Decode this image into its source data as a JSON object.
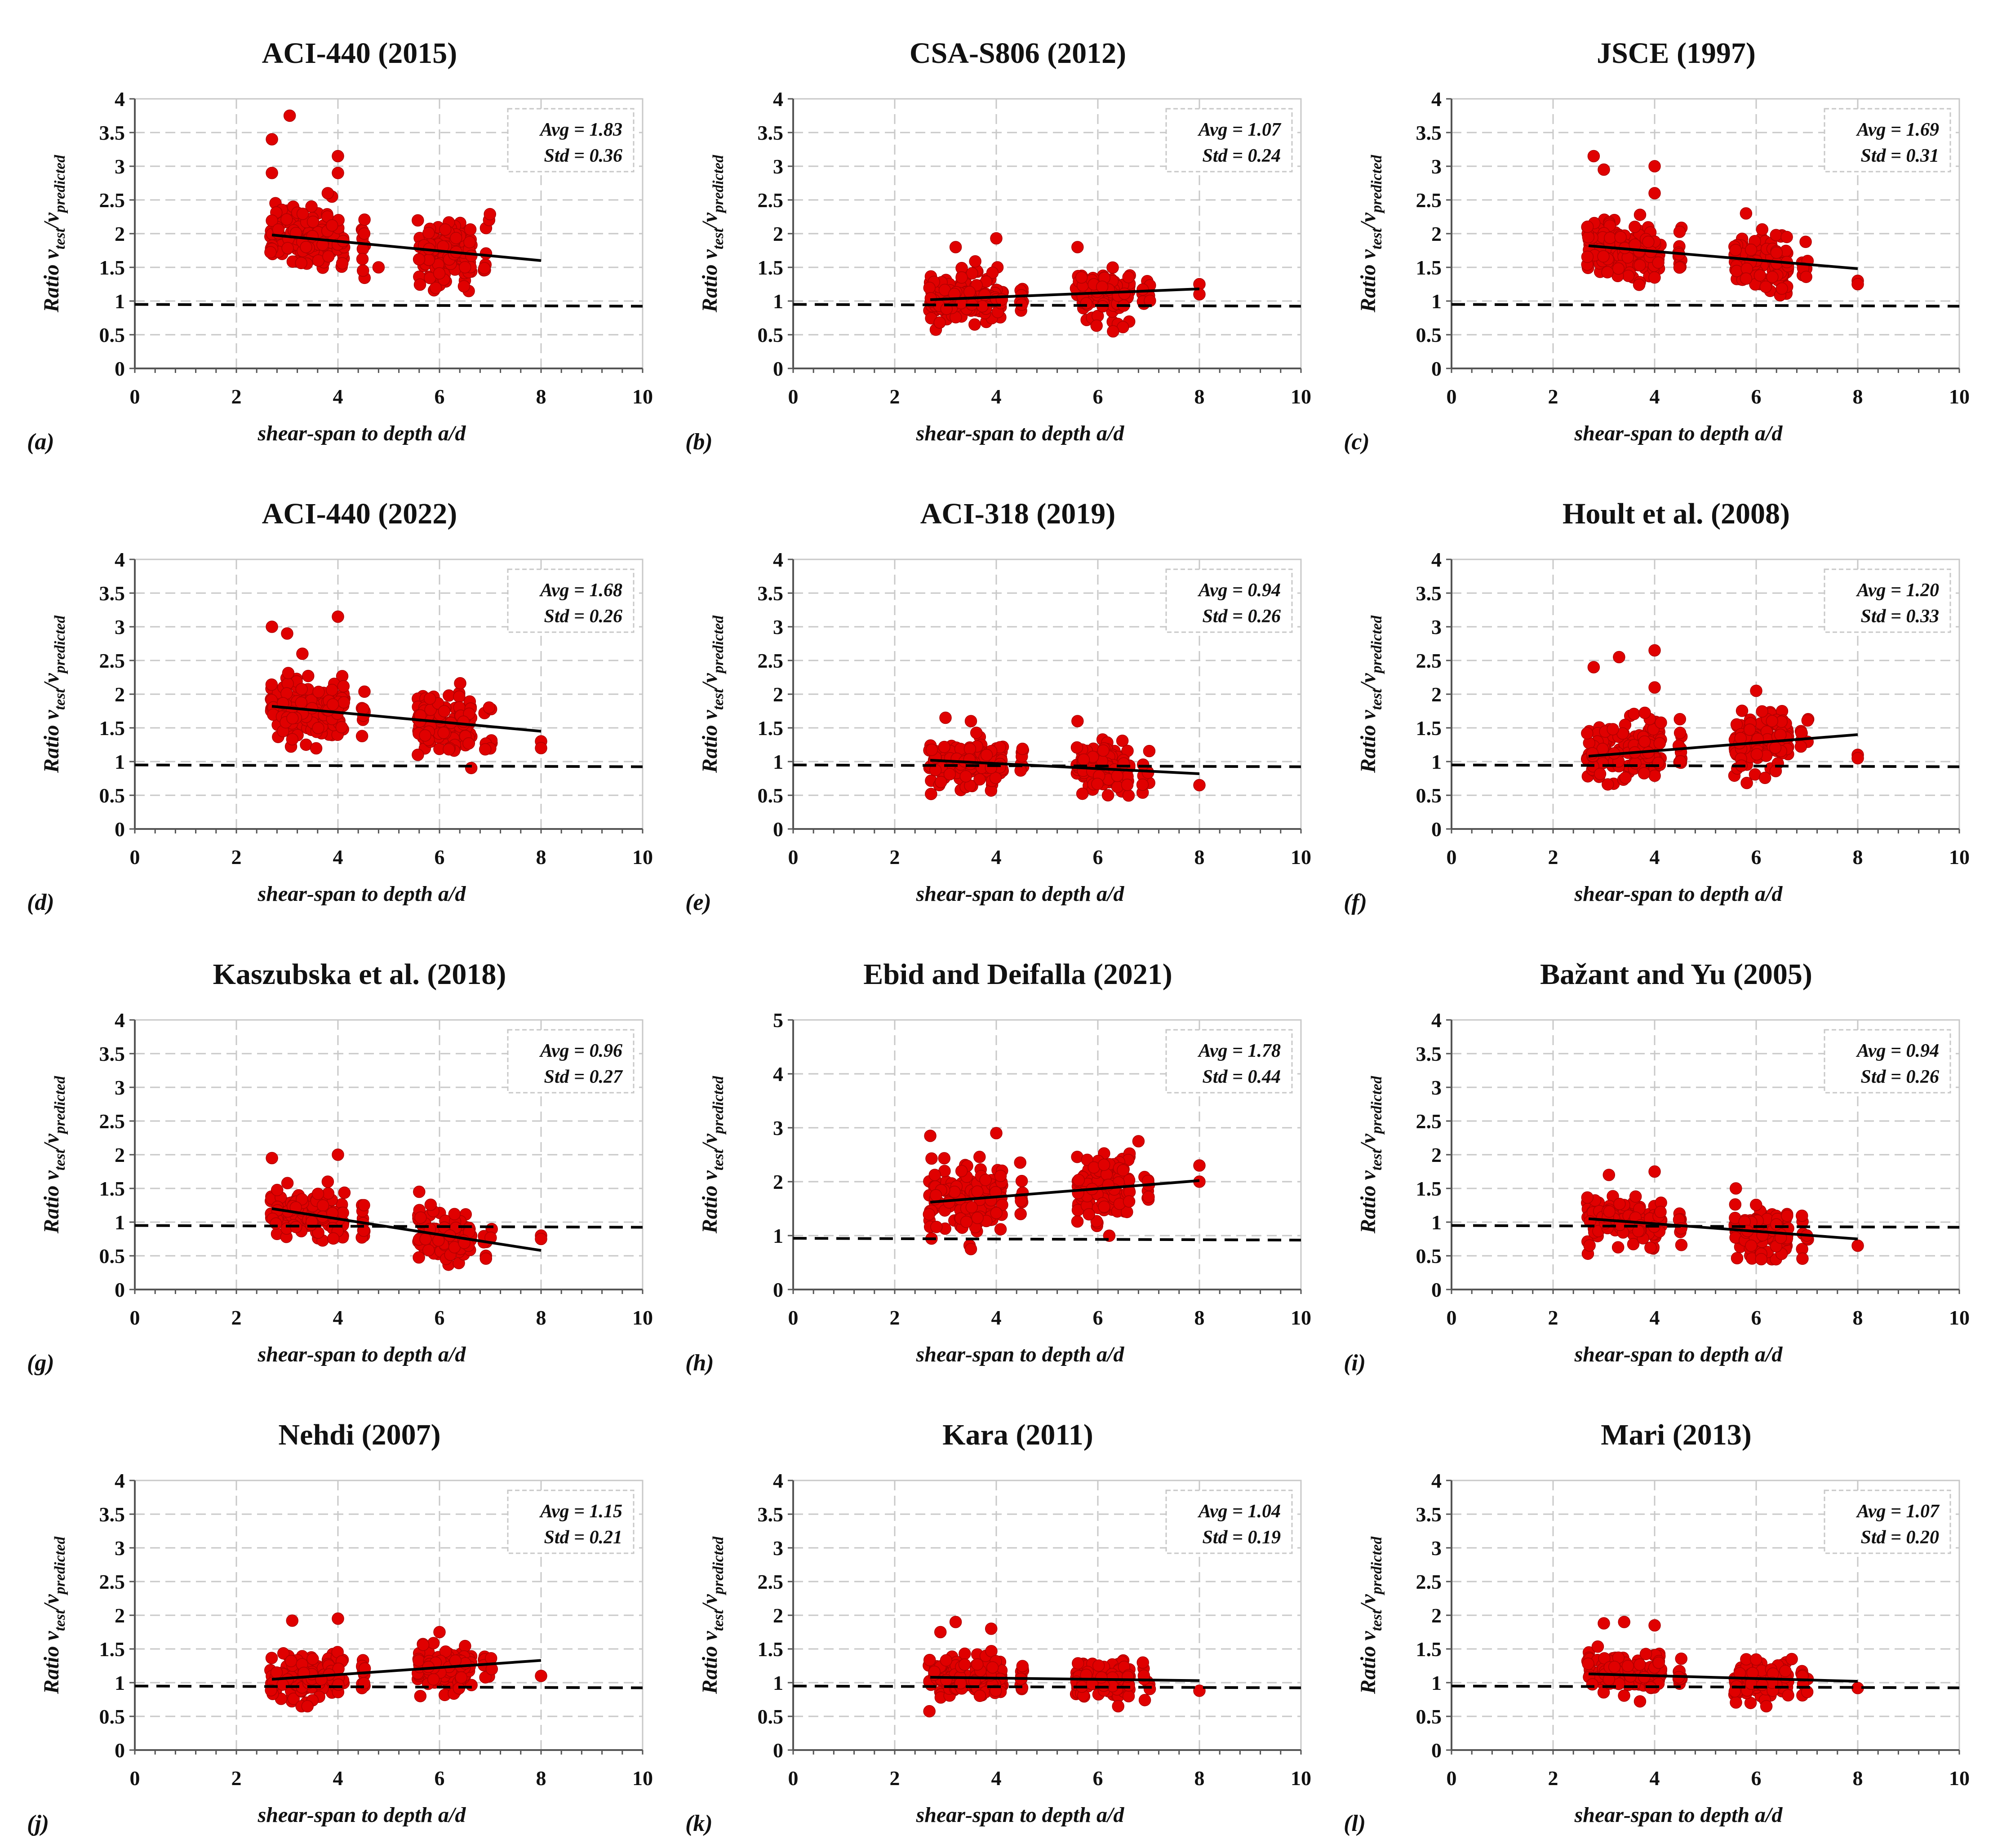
{
  "figure": {
    "colors": {
      "point": "#e00000",
      "point_edge": "#b00000",
      "grid": "#c8c8c8",
      "axis": "#555555",
      "trend": "#000000",
      "reference": "#000000"
    }
  },
  "chart_data": [
    {
      "type": "scatter",
      "letter": "(a)",
      "title": "ACI-440 (2015)",
      "xlabel": "shear-span to depth a/d",
      "ylabel_main": "Ratio v",
      "ylabel_sub1": "test",
      "ylabel_mid": "/v",
      "ylabel_sub2": "predicted",
      "xlim": [
        0,
        10
      ],
      "ylim": [
        0,
        4
      ],
      "xticks": [
        "0",
        "2",
        "4",
        "6",
        "8",
        "10"
      ],
      "yticks": [
        "0",
        "0.5",
        "1",
        "1.5",
        "2",
        "2.5",
        "3",
        "3.5",
        "4"
      ],
      "avg_label": "Avg = 1.83",
      "std_label": "Std = 0.36",
      "trend": {
        "x": [
          2.7,
          8
        ],
        "y": [
          1.98,
          1.6
        ]
      },
      "reference_y": 0.95,
      "seed": 11,
      "cloud": {
        "center": 1.88,
        "spread": 0.3
      },
      "outliers": [
        [
          2.7,
          3.4
        ],
        [
          3.05,
          3.75
        ],
        [
          4.0,
          3.15
        ],
        [
          4.0,
          2.9
        ],
        [
          2.7,
          2.9
        ],
        [
          3.8,
          2.6
        ],
        [
          4.8,
          1.5
        ]
      ]
    },
    {
      "type": "scatter",
      "letter": "(b)",
      "title": "CSA-S806 (2012)",
      "xlabel": "shear-span to depth a/d",
      "ylabel_main": "Ratio v",
      "ylabel_sub1": "test",
      "ylabel_mid": "/v",
      "ylabel_sub2": "predicted",
      "xlim": [
        0,
        10
      ],
      "ylim": [
        0,
        4
      ],
      "xticks": [
        "0",
        "2",
        "4",
        "6",
        "8",
        "10"
      ],
      "yticks": [
        "0",
        "0.5",
        "1",
        "1.5",
        "2",
        "2.5",
        "3",
        "3.5",
        "4"
      ],
      "avg_label": "Avg = 1.07",
      "std_label": "Std = 0.24",
      "trend": {
        "x": [
          2.7,
          8
        ],
        "y": [
          1.02,
          1.18
        ]
      },
      "reference_y": 0.95,
      "seed": 23,
      "cloud": {
        "center": 1.07,
        "spread": 0.22
      },
      "outliers": [
        [
          4.0,
          1.93
        ],
        [
          5.6,
          1.8
        ],
        [
          3.2,
          1.8
        ],
        [
          6.3,
          0.55
        ],
        [
          8,
          1.25
        ],
        [
          8,
          1.1
        ]
      ]
    },
    {
      "type": "scatter",
      "letter": "(c)",
      "title": "JSCE (1997)",
      "xlabel": "shear-span to depth a/d",
      "ylabel_main": "Ratio v",
      "ylabel_sub1": "test",
      "ylabel_mid": "/v",
      "ylabel_sub2": "predicted",
      "xlim": [
        0,
        10
      ],
      "ylim": [
        0,
        4
      ],
      "xticks": [
        "0",
        "2",
        "4",
        "6",
        "8",
        "10"
      ],
      "yticks": [
        "0",
        "0.5",
        "1",
        "1.5",
        "2",
        "2.5",
        "3",
        "3.5",
        "4"
      ],
      "avg_label": "Avg = 1.69",
      "std_label": "Std = 0.31",
      "trend": {
        "x": [
          2.7,
          8
        ],
        "y": [
          1.82,
          1.48
        ]
      },
      "reference_y": 0.95,
      "seed": 37,
      "cloud": {
        "center": 1.72,
        "spread": 0.27
      },
      "outliers": [
        [
          2.8,
          3.15
        ],
        [
          4.0,
          3.0
        ],
        [
          3.0,
          2.95
        ],
        [
          4.0,
          2.6
        ],
        [
          5.8,
          2.3
        ],
        [
          8,
          1.3
        ],
        [
          8,
          1.25
        ]
      ]
    },
    {
      "type": "scatter",
      "letter": "(d)",
      "title": "ACI-440 (2022)",
      "xlabel": "shear-span to depth a/d",
      "ylabel_main": "Ratio v",
      "ylabel_sub1": "test",
      "ylabel_mid": "/v",
      "ylabel_sub2": "predicted",
      "xlim": [
        0,
        10
      ],
      "ylim": [
        0,
        4
      ],
      "xticks": [
        "0",
        "2",
        "4",
        "6",
        "8",
        "10"
      ],
      "yticks": [
        "0",
        "0.5",
        "1",
        "1.5",
        "2",
        "2.5",
        "3",
        "3.5",
        "4"
      ],
      "avg_label": "Avg = 1.68",
      "std_label": "Std = 0.26",
      "trend": {
        "x": [
          2.7,
          8
        ],
        "y": [
          1.82,
          1.45
        ]
      },
      "reference_y": 0.95,
      "seed": 41,
      "cloud": {
        "center": 1.7,
        "spread": 0.28
      },
      "outliers": [
        [
          2.7,
          3.0
        ],
        [
          3.0,
          2.9
        ],
        [
          4.0,
          3.15
        ],
        [
          3.3,
          2.6
        ],
        [
          8,
          1.3
        ],
        [
          8,
          1.2
        ]
      ]
    },
    {
      "type": "scatter",
      "letter": "(e)",
      "title": "ACI-318 (2019)",
      "xlabel": "shear-span to depth a/d",
      "ylabel_main": "Ratio v",
      "ylabel_sub1": "test",
      "ylabel_mid": "/v",
      "ylabel_sub2": "predicted",
      "xlim": [
        0,
        10
      ],
      "ylim": [
        0,
        4
      ],
      "xticks": [
        "0",
        "2",
        "4",
        "6",
        "8",
        "10"
      ],
      "yticks": [
        "0",
        "0.5",
        "1",
        "1.5",
        "2",
        "2.5",
        "3",
        "3.5",
        "4"
      ],
      "avg_label": "Avg = 0.94",
      "std_label": "Std = 0.26",
      "trend": {
        "x": [
          2.7,
          8
        ],
        "y": [
          1.02,
          0.82
        ]
      },
      "reference_y": 0.95,
      "seed": 53,
      "cloud": {
        "center": 0.96,
        "spread": 0.22
      },
      "outliers": [
        [
          3.0,
          1.65
        ],
        [
          3.5,
          1.6
        ],
        [
          5.6,
          1.6
        ],
        [
          8,
          0.65
        ],
        [
          6.2,
          0.5
        ]
      ]
    },
    {
      "type": "scatter",
      "letter": "(f)",
      "title": "Hoult et al. (2008)",
      "xlabel": "shear-span to depth a/d",
      "ylabel_main": "Ratio v",
      "ylabel_sub1": "test",
      "ylabel_mid": "/v",
      "ylabel_sub2": "predicted",
      "xlim": [
        0,
        10
      ],
      "ylim": [
        0,
        4
      ],
      "xticks": [
        "0",
        "2",
        "4",
        "6",
        "8",
        "10"
      ],
      "yticks": [
        "0",
        "0.5",
        "1",
        "1.5",
        "2",
        "2.5",
        "3",
        "3.5",
        "4"
      ],
      "avg_label": "Avg = 1.20",
      "std_label": "Std = 0.33",
      "trend": {
        "x": [
          2.7,
          8
        ],
        "y": [
          1.08,
          1.4
        ]
      },
      "reference_y": 0.95,
      "seed": 67,
      "cloud": {
        "center": 1.22,
        "spread": 0.27
      },
      "outliers": [
        [
          4.0,
          2.65
        ],
        [
          3.3,
          2.55
        ],
        [
          2.8,
          2.4
        ],
        [
          4.0,
          2.1
        ],
        [
          6.0,
          2.05
        ],
        [
          8,
          1.1
        ],
        [
          8,
          1.05
        ]
      ]
    },
    {
      "type": "scatter",
      "letter": "(g)",
      "title": "Kaszubska  et al. (2018)",
      "xlabel": "shear-span to depth a/d",
      "ylabel_main": "Ratio v",
      "ylabel_sub1": "test",
      "ylabel_mid": "/v",
      "ylabel_sub2": "predicted",
      "xlim": [
        0,
        10
      ],
      "ylim": [
        0,
        4
      ],
      "xticks": [
        "0",
        "2",
        "4",
        "6",
        "8",
        "10"
      ],
      "yticks": [
        "0",
        "0.5",
        "1",
        "1.5",
        "2",
        "2.5",
        "3",
        "3.5",
        "4"
      ],
      "avg_label": "Avg = 0.96",
      "std_label": "Std = 0.27",
      "trend": {
        "x": [
          2.7,
          8
        ],
        "y": [
          1.2,
          0.58
        ]
      },
      "reference_y": 0.95,
      "seed": 71,
      "cloud": {
        "center": 0.95,
        "spread": 0.22
      },
      "outliers": [
        [
          2.7,
          1.95
        ],
        [
          4.0,
          2.0
        ],
        [
          3.8,
          1.6
        ],
        [
          5.6,
          1.45
        ],
        [
          8,
          0.8
        ],
        [
          8,
          0.75
        ]
      ]
    },
    {
      "type": "scatter",
      "letter": "(h)",
      "title": "Ebid and Deifalla (2021)",
      "xlabel": "shear-span to depth a/d",
      "ylabel_main": "Ratio v",
      "ylabel_sub1": "test",
      "ylabel_mid": "/v",
      "ylabel_sub2": "predicted",
      "xlim": [
        0,
        10
      ],
      "ylim": [
        0,
        5
      ],
      "xticks": [
        "0",
        "2",
        "4",
        "6",
        "8",
        "10"
      ],
      "yticks": [
        "0",
        "1",
        "2",
        "3",
        "4",
        "5"
      ],
      "avg_label": "Avg = 1.78",
      "std_label": "Std = 0.44",
      "trend": {
        "x": [
          2.7,
          8
        ],
        "y": [
          1.62,
          2.02
        ]
      },
      "reference_y": 0.95,
      "seed": 83,
      "cloud": {
        "center": 1.8,
        "spread": 0.4
      },
      "outliers": [
        [
          2.7,
          2.85
        ],
        [
          4.0,
          2.9
        ],
        [
          6.8,
          2.75
        ],
        [
          8,
          2.3
        ],
        [
          8,
          2.0
        ],
        [
          3.5,
          0.75
        ]
      ]
    },
    {
      "type": "scatter",
      "letter": "(i)",
      "title": "Bažant and Yu (2005)",
      "xlabel": "shear-span to depth a/d",
      "ylabel_main": "Ratio v",
      "ylabel_sub1": "test",
      "ylabel_mid": "/v",
      "ylabel_sub2": "predicted",
      "xlim": [
        0,
        10
      ],
      "ylim": [
        0,
        4
      ],
      "xticks": [
        "0",
        "2",
        "4",
        "6",
        "8",
        "10"
      ],
      "yticks": [
        "0",
        "0.5",
        "1",
        "1.5",
        "2",
        "2.5",
        "3",
        "3.5",
        "4"
      ],
      "avg_label": "Avg = 0.94",
      "std_label": "Std = 0.26",
      "trend": {
        "x": [
          2.7,
          8
        ],
        "y": [
          1.05,
          0.75
        ]
      },
      "reference_y": 0.95,
      "seed": 97,
      "cloud": {
        "center": 0.95,
        "spread": 0.22
      },
      "outliers": [
        [
          4.0,
          1.75
        ],
        [
          3.1,
          1.7
        ],
        [
          5.6,
          1.5
        ],
        [
          8,
          0.65
        ],
        [
          6.1,
          0.45
        ]
      ]
    },
    {
      "type": "scatter",
      "letter": "(j)",
      "title": "Nehdi (2007)",
      "xlabel": "shear-span to depth a/d",
      "ylabel_main": "Ratio v",
      "ylabel_sub1": "test",
      "ylabel_mid": "/v",
      "ylabel_sub2": "predicted",
      "xlim": [
        0,
        10
      ],
      "ylim": [
        0,
        4
      ],
      "xticks": [
        "0",
        "2",
        "4",
        "6",
        "8",
        "10"
      ],
      "yticks": [
        "0",
        "0.5",
        "1",
        "1.5",
        "2",
        "2.5",
        "3",
        "3.5",
        "4"
      ],
      "avg_label": "Avg = 1.15",
      "std_label": "Std = 0.21",
      "trend": {
        "x": [
          2.7,
          8
        ],
        "y": [
          1.05,
          1.33
        ]
      },
      "reference_y": 0.95,
      "seed": 101,
      "cloud": {
        "center": 1.15,
        "spread": 0.2
      },
      "outliers": [
        [
          3.1,
          1.92
        ],
        [
          4.0,
          1.95
        ],
        [
          6.0,
          1.75
        ],
        [
          8,
          1.1
        ],
        [
          3.4,
          0.65
        ]
      ]
    },
    {
      "type": "scatter",
      "letter": "(k)",
      "title": "Kara (2011)",
      "xlabel": "shear-span to depth a/d",
      "ylabel_main": "Ratio v",
      "ylabel_sub1": "test",
      "ylabel_mid": "/v",
      "ylabel_sub2": "predicted",
      "xlim": [
        0,
        10
      ],
      "ylim": [
        0,
        4
      ],
      "xticks": [
        "0",
        "2",
        "4",
        "6",
        "8",
        "10"
      ],
      "yticks": [
        "0",
        "0.5",
        "1",
        "1.5",
        "2",
        "2.5",
        "3",
        "3.5",
        "4"
      ],
      "avg_label": "Avg = 1.04",
      "std_label": "Std = 0.19",
      "trend": {
        "x": [
          2.7,
          8
        ],
        "y": [
          1.08,
          1.03
        ]
      },
      "reference_y": 0.95,
      "seed": 113,
      "cloud": {
        "center": 1.05,
        "spread": 0.18
      },
      "outliers": [
        [
          3.2,
          1.9
        ],
        [
          3.9,
          1.8
        ],
        [
          2.9,
          1.75
        ],
        [
          8,
          0.88
        ],
        [
          6.4,
          0.65
        ]
      ]
    },
    {
      "type": "scatter",
      "letter": "(l)",
      "title": "Mari (2013)",
      "xlabel": "shear-span to depth a/d",
      "ylabel_main": "Ratio v",
      "ylabel_sub1": "test",
      "ylabel_mid": "/v",
      "ylabel_sub2": "predicted",
      "xlim": [
        0,
        10
      ],
      "ylim": [
        0,
        4
      ],
      "xticks": [
        "0",
        "2",
        "4",
        "6",
        "8",
        "10"
      ],
      "yticks": [
        "0",
        "0.5",
        "1",
        "1.5",
        "2",
        "2.5",
        "3",
        "3.5",
        "4"
      ],
      "avg_label": "Avg = 1.07",
      "std_label": "Std = 0.20",
      "trend": {
        "x": [
          2.7,
          8
        ],
        "y": [
          1.13,
          1.02
        ]
      },
      "reference_y": 0.95,
      "seed": 127,
      "cloud": {
        "center": 1.08,
        "spread": 0.18
      },
      "outliers": [
        [
          3.0,
          1.88
        ],
        [
          3.4,
          1.9
        ],
        [
          4.0,
          1.85
        ],
        [
          6.7,
          1.35
        ],
        [
          8,
          0.92
        ],
        [
          6.2,
          0.65
        ]
      ]
    }
  ]
}
